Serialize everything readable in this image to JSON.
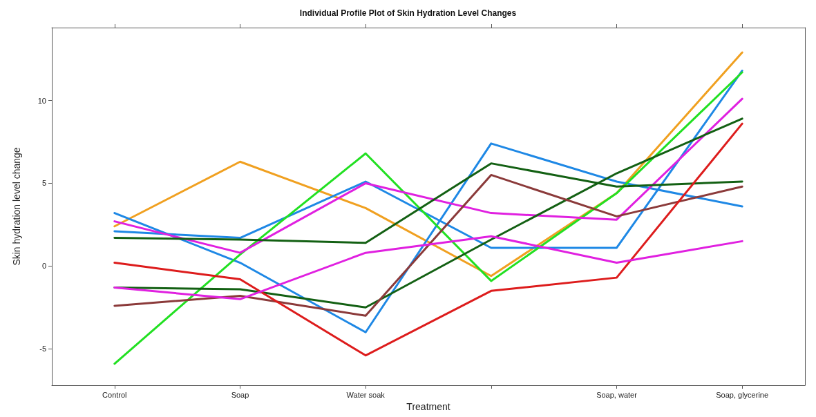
{
  "chart_data": {
    "type": "line",
    "title": "Individual Profile Plot of Skin Hydration Level Changes",
    "xlabel": "Treatment",
    "ylabel": "Skin hydration level change",
    "categories": [
      "Control",
      "Soap",
      "Water soak",
      null,
      "Soap, water",
      "Soap, glycerine"
    ],
    "series": [
      {
        "color": "#f0a020",
        "values": [
          2.4,
          6.3,
          3.5,
          -0.6,
          4.4,
          12.9
        ]
      },
      {
        "color": "#1e88e5",
        "values": [
          3.2,
          0.2,
          -4.0,
          7.4,
          5.1,
          3.6
        ]
      },
      {
        "color": "#1e88e5",
        "values": [
          2.1,
          1.7,
          5.1,
          1.1,
          1.1,
          11.8
        ]
      },
      {
        "color": "#22e022",
        "values": [
          -5.9,
          0.7,
          6.8,
          -0.9,
          4.4,
          11.7
        ]
      },
      {
        "color": "#e020e0",
        "values": [
          2.7,
          0.8,
          5.0,
          3.2,
          2.8,
          10.1
        ]
      },
      {
        "color": "#136013",
        "values": [
          1.7,
          1.6,
          1.4,
          6.2,
          4.8,
          5.1
        ]
      },
      {
        "color": "#136013",
        "values": [
          -1.3,
          -1.4,
          -2.5,
          1.6,
          5.6,
          8.9
        ]
      },
      {
        "color": "#8b3a3a",
        "values": [
          -2.4,
          -1.8,
          -3.0,
          5.5,
          3.0,
          4.8
        ]
      },
      {
        "color": "#dd1c1c",
        "values": [
          0.2,
          -0.8,
          -5.4,
          -1.5,
          -0.7,
          8.6
        ]
      },
      {
        "color": "#e020e0",
        "values": [
          -1.3,
          -2.0,
          0.8,
          1.8,
          0.2,
          1.5
        ]
      }
    ],
    "ylim": [
      -7.2,
      14.4
    ],
    "yticks": [
      -5,
      0,
      5,
      10
    ],
    "grid": false,
    "marker": "none",
    "line_style": "solid"
  }
}
